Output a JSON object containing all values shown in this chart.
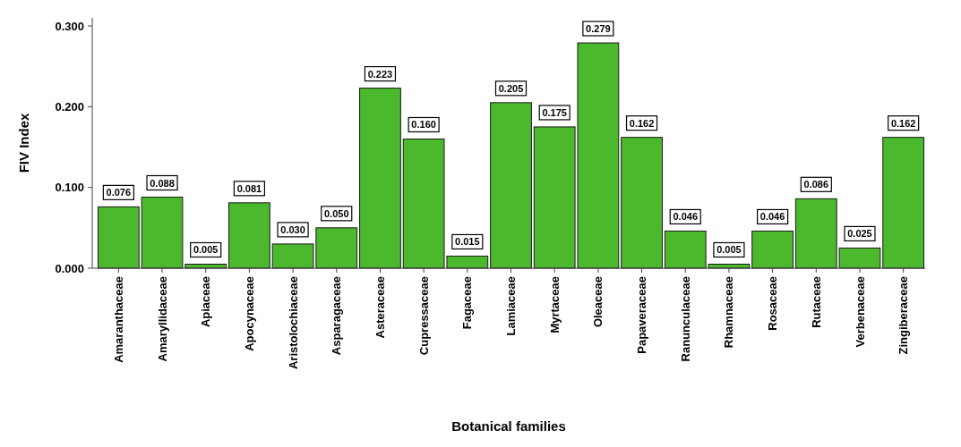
{
  "chart_data": {
    "type": "bar",
    "xlabel": "Botanical families",
    "ylabel": "FIV Index",
    "categories": [
      "Amaranthaceae",
      "Amaryllidaceae",
      "Apiaceae",
      "Apocynaceae",
      "Aristolochiaceae",
      "Asparagaceae",
      "Asteraceae",
      "Cupressaceae",
      "Fagaceae",
      "Lamiaceae",
      "Myrtaceae",
      "Oleaceae",
      "Papaveraceae",
      "Ranunculaceae",
      "Rhamnaceae",
      "Rosaceae",
      "Rutaceae",
      "Verbenaceae",
      "Zingiberaceae"
    ],
    "values": [
      0.076,
      0.088,
      0.005,
      0.081,
      0.03,
      0.05,
      0.223,
      0.16,
      0.015,
      0.205,
      0.175,
      0.279,
      0.162,
      0.046,
      0.005,
      0.046,
      0.086,
      0.025,
      0.162
    ],
    "color": "#4cb82e",
    "ylim": [
      0,
      0.31
    ],
    "yticks": [
      {
        "value": 0,
        "label": "0.000"
      },
      {
        "value": 0.1,
        "label": "0.100"
      },
      {
        "value": 0.2,
        "label": "0.200"
      },
      {
        "value": 0.3,
        "label": "0.300"
      }
    ],
    "value_labels": [
      "0.076",
      "0.088",
      "0.005",
      "0.081",
      "0.030",
      "0.050",
      "0.223",
      "0.160",
      "0.015",
      "0.205",
      "0.175",
      "0.279",
      "0.162",
      "0.046",
      "0.005",
      "0.046",
      "0.086",
      "0.025",
      "0.162"
    ],
    "grid": false
  }
}
